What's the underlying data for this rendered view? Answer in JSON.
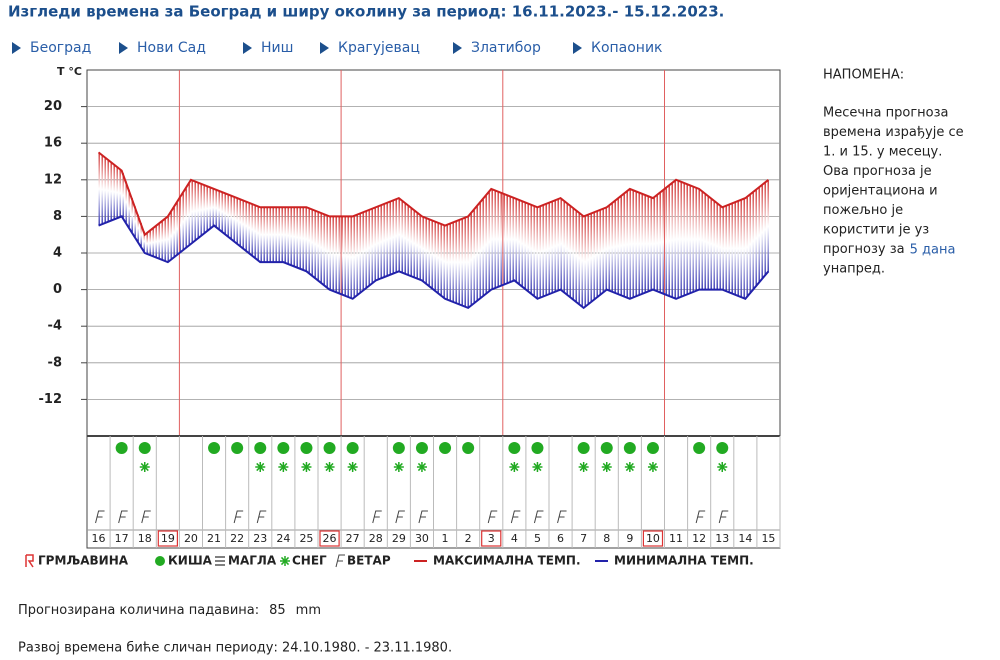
{
  "header": {
    "title": "Изгледи времена за Београд и ширу околину за период: 16.11.2023.- 15.12.2023.",
    "cities": [
      "Београд",
      "Нови Сад",
      "Ниш",
      "Крагујевац",
      "Златибор",
      "Копаоник"
    ]
  },
  "chart_data": {
    "type": "line",
    "y_label": "T °C",
    "categories": [
      "16",
      "17",
      "18",
      "19",
      "20",
      "21",
      "22",
      "23",
      "24",
      "25",
      "26",
      "27",
      "28",
      "29",
      "30",
      "1",
      "2",
      "3",
      "4",
      "5",
      "6",
      "7",
      "8",
      "9",
      "10",
      "11",
      "12",
      "13",
      "14",
      "15"
    ],
    "marked": [
      false,
      false,
      false,
      true,
      false,
      false,
      false,
      false,
      false,
      false,
      true,
      false,
      false,
      false,
      false,
      false,
      false,
      true,
      false,
      false,
      false,
      false,
      false,
      false,
      true,
      false,
      false,
      false,
      false,
      false
    ],
    "series": [
      {
        "name": "МАКСИМАЛНА ТЕМП.",
        "color": "#cc2222",
        "values": [
          15,
          13,
          6,
          8,
          12,
          11,
          10,
          9,
          9,
          9,
          8,
          8,
          9,
          10,
          8,
          7,
          8,
          11,
          10,
          9,
          10,
          8,
          9,
          11,
          10,
          12,
          11,
          9,
          10,
          12
        ]
      },
      {
        "name": "МИНИМАЛНА ТЕМП.",
        "color": "#2222aa",
        "values": [
          7,
          8,
          4,
          3,
          5,
          7,
          5,
          3,
          3,
          2,
          0,
          -1,
          1,
          2,
          1,
          -1,
          -2,
          0,
          1,
          -1,
          0,
          -2,
          0,
          -1,
          0,
          -1,
          0,
          0,
          -1,
          2
        ]
      }
    ],
    "rain": [
      false,
      true,
      true,
      false,
      false,
      true,
      true,
      true,
      true,
      true,
      true,
      true,
      false,
      true,
      true,
      true,
      true,
      false,
      true,
      true,
      false,
      true,
      true,
      true,
      true,
      false,
      true,
      true,
      false,
      false
    ],
    "snow": [
      false,
      false,
      true,
      false,
      false,
      false,
      false,
      true,
      true,
      true,
      true,
      true,
      false,
      true,
      true,
      false,
      false,
      false,
      true,
      true,
      false,
      true,
      true,
      true,
      true,
      false,
      false,
      true,
      false,
      false
    ],
    "wind": [
      true,
      true,
      true,
      false,
      false,
      false,
      true,
      true,
      false,
      false,
      false,
      false,
      true,
      true,
      true,
      false,
      false,
      true,
      true,
      true,
      true,
      false,
      false,
      false,
      false,
      false,
      true,
      true,
      false,
      false
    ],
    "legend": [
      "ГРМЉАВИНА",
      "КИША",
      "МАГЛА",
      "СНЕГ",
      "ВЕТАР"
    ],
    "ylim": [
      -16,
      24
    ],
    "yticks": [
      20,
      16,
      12,
      8,
      4,
      0,
      -4,
      -8,
      -12
    ],
    "grid": true
  },
  "note": {
    "title": "НАПОМЕНА:",
    "lines": [
      "Месечна прогноза",
      "времена израђује се",
      "1. и 15. у месецу.",
      "Ова прогноза је",
      "оријентациона и",
      "пожељно је",
      "користити је уз",
      "прогнозу за"
    ],
    "link": "5 дана",
    "last": "унапред."
  },
  "precipitation": {
    "label": "Прогнозирана количина падавина:",
    "value": 85,
    "unit": "mm"
  },
  "development": "Развој времена биће сличан периоду: 24.10.1980. - 23.11.1980."
}
